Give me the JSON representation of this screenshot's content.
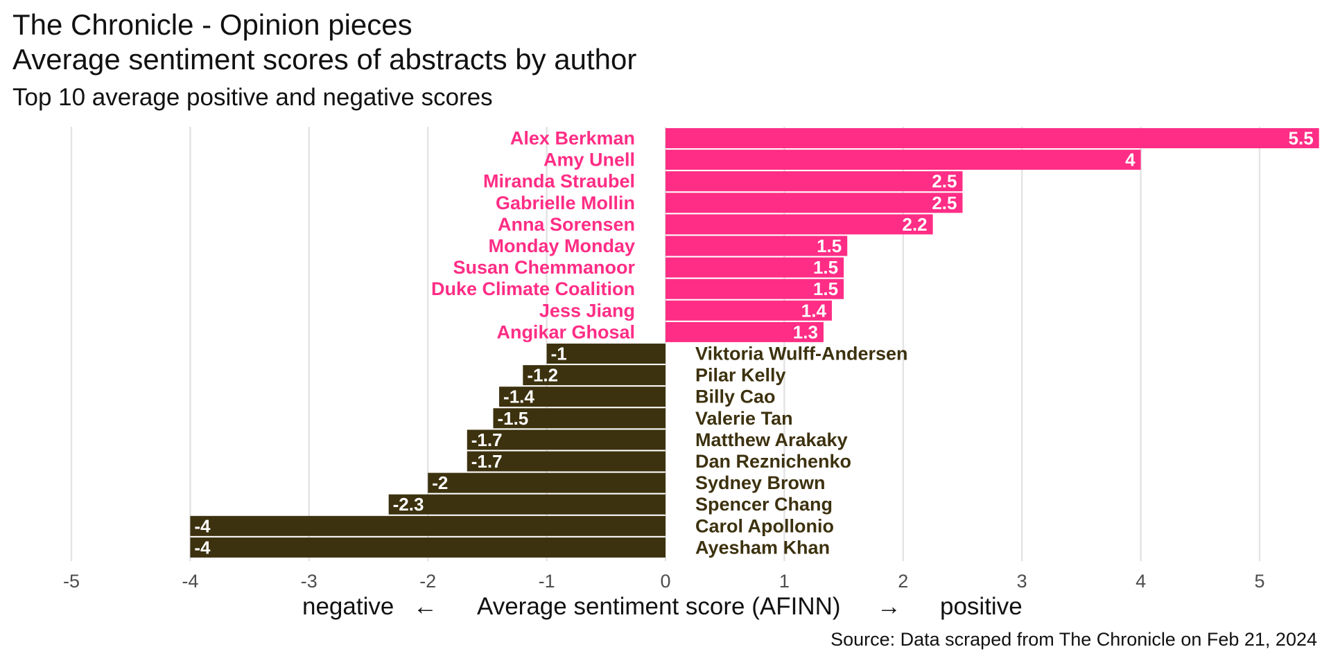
{
  "title_line1": "The Chronicle - Opinion pieces",
  "title_line2": "Average sentiment scores of abstracts by author",
  "subtitle": "Top 10 average positive and negative scores",
  "caption": "Source: Data scraped from The Chronicle on Feb 21, 2024",
  "axis": {
    "negative_word": "negative",
    "negative_arrow": "←",
    "xlabel": "Average sentiment score (AFINN)",
    "positive_arrow": "→",
    "positive_word": "positive"
  },
  "colors": {
    "positive": "#ff2d85",
    "negative": "#3d320f",
    "bar_label": "#ffffff",
    "grid": "#e3e3e3",
    "tick": "#4d4d4d"
  },
  "chart_data": {
    "type": "bar",
    "orientation": "horizontal",
    "grid": true,
    "xlim": [
      -5,
      5.5
    ],
    "xticks": [
      -5,
      -4,
      -3,
      -2,
      -1,
      0,
      1,
      2,
      3,
      4,
      5
    ],
    "categories": [
      "Alex Berkman",
      "Amy Unell",
      "Miranda Straubel",
      "Gabrielle Mollin",
      "Anna Sorensen",
      "Monday Monday",
      "Susan Chemmanoor",
      "Duke Climate Coalition",
      "Jess Jiang",
      "Angikar Ghosal",
      "Viktoria Wulff-Andersen",
      "Pilar Kelly",
      "Billy Cao",
      "Valerie Tan",
      "Matthew Arakaky",
      "Dan Reznichenko",
      "Sydney Brown",
      "Spencer Chang",
      "Carol Apollonio",
      "Ayesham Khan"
    ],
    "values": [
      5.5,
      4,
      2.5,
      2.5,
      2.25,
      1.53,
      1.5,
      1.5,
      1.4,
      1.33,
      -1,
      -1.2,
      -1.4,
      -1.45,
      -1.67,
      -1.67,
      -2,
      -2.33,
      -4,
      -4
    ],
    "value_labels": [
      "5.5",
      "4",
      "2.5",
      "2.5",
      "2.2",
      "1.5",
      "1.5",
      "1.5",
      "1.4",
      "1.3",
      "-1",
      "-1.2",
      "-1.4",
      "-1.5",
      "-1.7",
      "-1.7",
      "-2",
      "-2.3",
      "-4",
      "-4"
    ]
  }
}
